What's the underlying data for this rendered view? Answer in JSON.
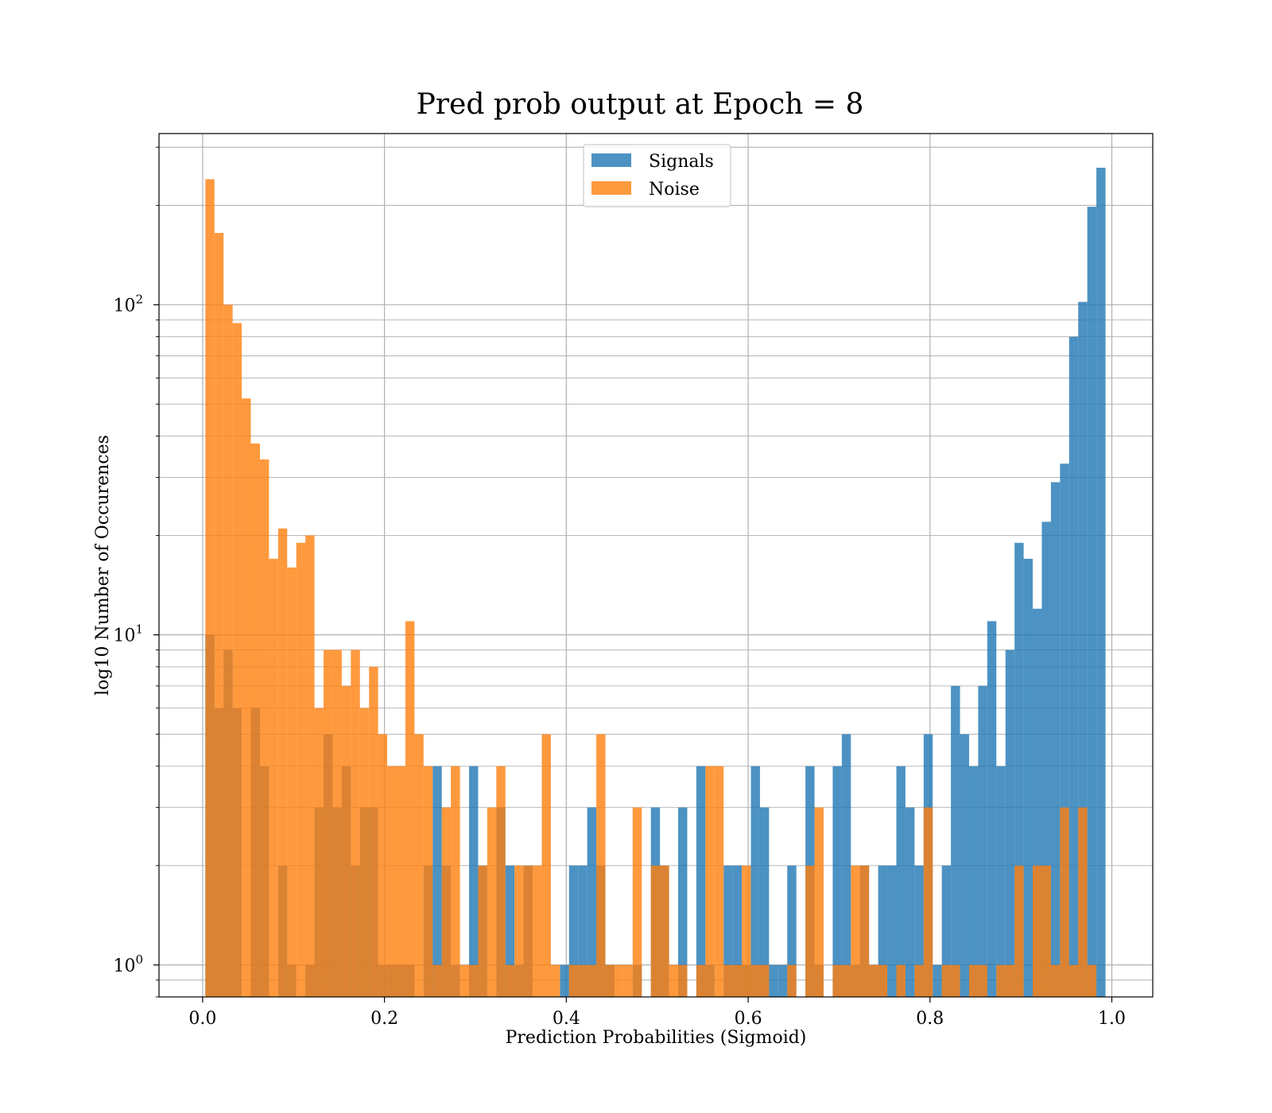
{
  "chart_data": {
    "type": "bar",
    "title": "Pred prob output at Epoch = 8",
    "xlabel": "Prediction Probabilities (Sigmoid)",
    "ylabel": "log10 Number of Occurences",
    "yscale": "log",
    "xlim": [
      -0.048,
      1.045
    ],
    "ylim": [
      0.8,
      330
    ],
    "grid": true,
    "legend_position": "top-center",
    "bin_width": 0.01,
    "xticks": [
      "0.0",
      "0.2",
      "0.4",
      "0.6",
      "0.8",
      "1.0"
    ],
    "xtick_values": [
      0.0,
      0.2,
      0.4,
      0.6,
      0.8,
      1.0
    ],
    "ytick_values": [
      1,
      10,
      100
    ],
    "series": [
      {
        "name": "Signals",
        "color": "#1f77b4",
        "bins": [
          [
            0.008,
            10
          ],
          [
            0.018,
            6
          ],
          [
            0.028,
            9
          ],
          [
            0.038,
            6
          ],
          [
            0.058,
            6
          ],
          [
            0.068,
            4
          ],
          [
            0.088,
            2
          ],
          [
            0.098,
            1
          ],
          [
            0.118,
            1
          ],
          [
            0.128,
            3
          ],
          [
            0.138,
            5
          ],
          [
            0.148,
            3
          ],
          [
            0.158,
            4
          ],
          [
            0.168,
            2
          ],
          [
            0.178,
            3
          ],
          [
            0.188,
            3
          ],
          [
            0.198,
            1
          ],
          [
            0.208,
            1
          ],
          [
            0.218,
            1
          ],
          [
            0.228,
            1
          ],
          [
            0.248,
            2
          ],
          [
            0.258,
            4
          ],
          [
            0.268,
            2
          ],
          [
            0.278,
            1
          ],
          [
            0.298,
            4
          ],
          [
            0.308,
            2
          ],
          [
            0.328,
            3
          ],
          [
            0.338,
            2
          ],
          [
            0.348,
            1
          ],
          [
            0.358,
            2
          ],
          [
            0.398,
            1
          ],
          [
            0.408,
            2
          ],
          [
            0.418,
            2
          ],
          [
            0.428,
            3
          ],
          [
            0.438,
            2
          ],
          [
            0.448,
            1
          ],
          [
            0.478,
            1
          ],
          [
            0.498,
            3
          ],
          [
            0.508,
            2
          ],
          [
            0.528,
            3
          ],
          [
            0.548,
            4
          ],
          [
            0.558,
            1
          ],
          [
            0.578,
            2
          ],
          [
            0.588,
            2
          ],
          [
            0.598,
            1
          ],
          [
            0.608,
            4
          ],
          [
            0.618,
            3
          ],
          [
            0.628,
            1
          ],
          [
            0.638,
            1
          ],
          [
            0.648,
            2
          ],
          [
            0.668,
            4
          ],
          [
            0.678,
            1
          ],
          [
            0.698,
            4
          ],
          [
            0.708,
            5
          ],
          [
            0.718,
            1
          ],
          [
            0.728,
            2
          ],
          [
            0.738,
            1
          ],
          [
            0.748,
            2
          ],
          [
            0.758,
            2
          ],
          [
            0.768,
            4
          ],
          [
            0.778,
            3
          ],
          [
            0.788,
            2
          ],
          [
            0.798,
            5
          ],
          [
            0.808,
            1
          ],
          [
            0.818,
            2
          ],
          [
            0.828,
            7
          ],
          [
            0.838,
            5
          ],
          [
            0.848,
            4
          ],
          [
            0.858,
            7
          ],
          [
            0.868,
            11
          ],
          [
            0.878,
            4
          ],
          [
            0.888,
            9
          ],
          [
            0.898,
            19
          ],
          [
            0.908,
            17
          ],
          [
            0.918,
            12
          ],
          [
            0.928,
            22
          ],
          [
            0.938,
            29
          ],
          [
            0.948,
            33
          ],
          [
            0.958,
            80
          ],
          [
            0.968,
            102
          ],
          [
            0.978,
            198
          ],
          [
            0.988,
            260
          ]
        ]
      },
      {
        "name": "Noise",
        "color": "#ff7f0e",
        "bins": [
          [
            0.008,
            240
          ],
          [
            0.018,
            165
          ],
          [
            0.028,
            100
          ],
          [
            0.038,
            88
          ],
          [
            0.048,
            52
          ],
          [
            0.058,
            38
          ],
          [
            0.068,
            34
          ],
          [
            0.078,
            17
          ],
          [
            0.088,
            21
          ],
          [
            0.098,
            16
          ],
          [
            0.108,
            19
          ],
          [
            0.118,
            20
          ],
          [
            0.128,
            6
          ],
          [
            0.138,
            9
          ],
          [
            0.148,
            9
          ],
          [
            0.158,
            7
          ],
          [
            0.168,
            9
          ],
          [
            0.178,
            6
          ],
          [
            0.188,
            8
          ],
          [
            0.198,
            5
          ],
          [
            0.208,
            4
          ],
          [
            0.218,
            4
          ],
          [
            0.228,
            11
          ],
          [
            0.238,
            5
          ],
          [
            0.248,
            4
          ],
          [
            0.258,
            1
          ],
          [
            0.268,
            3
          ],
          [
            0.278,
            4
          ],
          [
            0.288,
            1
          ],
          [
            0.298,
            1
          ],
          [
            0.308,
            2
          ],
          [
            0.318,
            3
          ],
          [
            0.328,
            4
          ],
          [
            0.338,
            1
          ],
          [
            0.348,
            2
          ],
          [
            0.358,
            2
          ],
          [
            0.368,
            2
          ],
          [
            0.378,
            5
          ],
          [
            0.388,
            1
          ],
          [
            0.408,
            1
          ],
          [
            0.418,
            1
          ],
          [
            0.428,
            1
          ],
          [
            0.438,
            5
          ],
          [
            0.448,
            1
          ],
          [
            0.458,
            1
          ],
          [
            0.468,
            1
          ],
          [
            0.478,
            3
          ],
          [
            0.498,
            2
          ],
          [
            0.508,
            2
          ],
          [
            0.518,
            1
          ],
          [
            0.528,
            1
          ],
          [
            0.548,
            1
          ],
          [
            0.558,
            4
          ],
          [
            0.568,
            4
          ],
          [
            0.578,
            1
          ],
          [
            0.588,
            1
          ],
          [
            0.598,
            2
          ],
          [
            0.608,
            1
          ],
          [
            0.618,
            1
          ],
          [
            0.648,
            1
          ],
          [
            0.668,
            2
          ],
          [
            0.678,
            3
          ],
          [
            0.698,
            1
          ],
          [
            0.708,
            1
          ],
          [
            0.718,
            2
          ],
          [
            0.728,
            2
          ],
          [
            0.738,
            1
          ],
          [
            0.748,
            1
          ],
          [
            0.768,
            1
          ],
          [
            0.788,
            1
          ],
          [
            0.798,
            3
          ],
          [
            0.818,
            1
          ],
          [
            0.828,
            1
          ],
          [
            0.848,
            1
          ],
          [
            0.858,
            1
          ],
          [
            0.878,
            1
          ],
          [
            0.888,
            1
          ],
          [
            0.898,
            2
          ],
          [
            0.918,
            2
          ],
          [
            0.928,
            2
          ],
          [
            0.938,
            1
          ],
          [
            0.948,
            3
          ],
          [
            0.958,
            1
          ],
          [
            0.968,
            3
          ],
          [
            0.978,
            1
          ]
        ]
      }
    ]
  }
}
